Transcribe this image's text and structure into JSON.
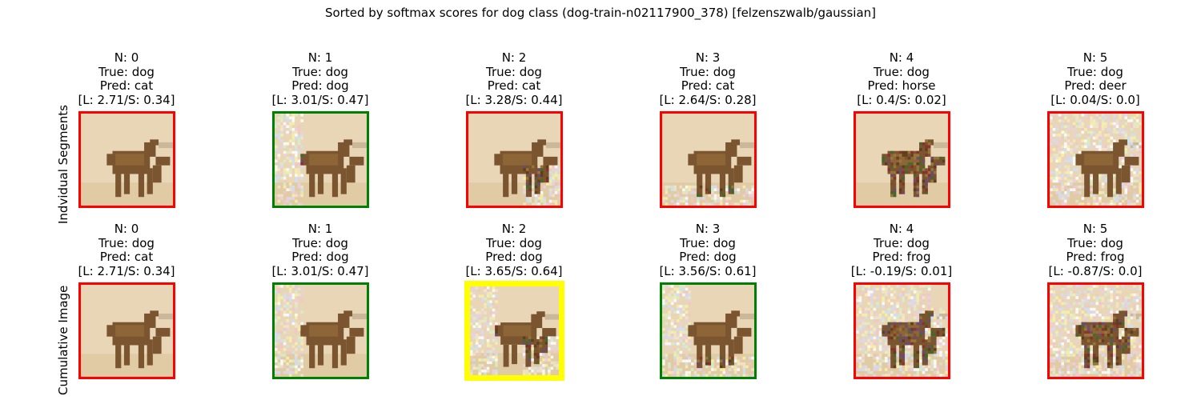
{
  "title": "Sorted by softmax scores for dog class (dog-train-n02117900_378) [felzenszwalb/gaussian]",
  "row_labels": [
    "Indvidual Segments",
    "Cumulative Image"
  ],
  "border_colors": {
    "incorrect": "#ff0000",
    "correct": "#008000",
    "best": "#ffff00"
  },
  "rows": [
    {
      "name": "Indvidual Segments",
      "panels": [
        {
          "n": "N: 0",
          "true": "True: dog",
          "pred": "Pred: cat",
          "scores": "[L: 2.71/S: 0.34]",
          "border": "incorrect",
          "noise": "none"
        },
        {
          "n": "N: 1",
          "true": "True: dog",
          "pred": "Pred: dog",
          "scores": "[L: 3.01/S: 0.47]",
          "border": "correct",
          "noise": "left"
        },
        {
          "n": "N: 2",
          "true": "True: dog",
          "pred": "Pred: cat",
          "scores": "[L: 3.28/S: 0.44]",
          "border": "incorrect",
          "noise": "bottom-right"
        },
        {
          "n": "N: 3",
          "true": "True: dog",
          "pred": "Pred: cat",
          "scores": "[L: 2.64/S: 0.28]",
          "border": "incorrect",
          "noise": "bottom"
        },
        {
          "n": "N: 4",
          "true": "True: dog",
          "pred": "Pred: horse",
          "scores": "[L: 0.4/S: 0.02]",
          "border": "incorrect",
          "noise": "dog"
        },
        {
          "n": "N: 5",
          "true": "True: dog",
          "pred": "Pred: deer",
          "scores": "[L: 0.04/S: 0.0]",
          "border": "incorrect",
          "noise": "background"
        }
      ]
    },
    {
      "name": "Cumulative Image",
      "panels": [
        {
          "n": "N: 0",
          "true": "True: dog",
          "pred": "Pred: cat",
          "scores": "[L: 2.71/S: 0.34]",
          "border": "incorrect",
          "noise": "none"
        },
        {
          "n": "N: 1",
          "true": "True: dog",
          "pred": "Pred: dog",
          "scores": "[L: 3.01/S: 0.47]",
          "border": "correct",
          "noise": "left"
        },
        {
          "n": "N: 2",
          "true": "True: dog",
          "pred": "Pred: dog",
          "scores": "[L: 3.65/S: 0.64]",
          "border": "best",
          "noise": "left+bottom-right"
        },
        {
          "n": "N: 3",
          "true": "True: dog",
          "pred": "Pred: dog",
          "scores": "[L: 3.56/S: 0.61]",
          "border": "correct",
          "noise": "left+bottom"
        },
        {
          "n": "N: 4",
          "true": "True: dog",
          "pred": "Pred: frog",
          "scores": "[L: -0.19/S: 0.01]",
          "border": "incorrect",
          "noise": "most"
        },
        {
          "n": "N: 5",
          "true": "True: dog",
          "pred": "Pred: frog",
          "scores": "[L: -0.87/S: 0.0]",
          "border": "incorrect",
          "noise": "all"
        }
      ]
    }
  ]
}
